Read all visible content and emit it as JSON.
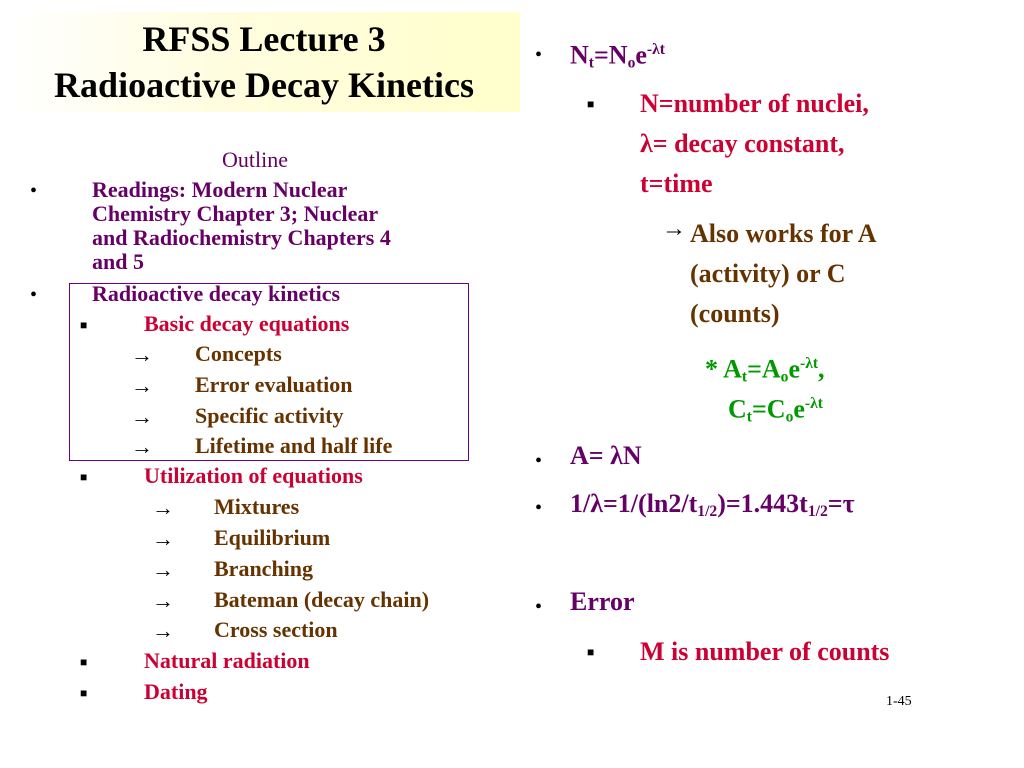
{
  "title": {
    "line1": "RFSS  Lecture 3",
    "line2": "Radioactive Decay Kinetics"
  },
  "outline": {
    "heading": "Outline",
    "items": [
      {
        "bullet": "•",
        "text": "Readings:  Modern Nuclear",
        "cont": [
          "Chemistry Chapter 3; Nuclear",
          "and Radiochemistry  Chapters 4",
          "and 5"
        ]
      },
      {
        "bullet": "•",
        "text": "Radioactive decay kinetics"
      }
    ],
    "basic": "Basic decay equations",
    "basic_sub": [
      "Concepts",
      "Error evaluation",
      "Specific activity",
      "Lifetime and half life"
    ],
    "utilization": "Utilization of equations",
    "util_sub": [
      "Mixtures",
      "Equilibrium",
      "Branching",
      "Bateman (decay chain)",
      "Cross section"
    ],
    "natural": "Natural radiation",
    "dating": "Dating"
  },
  "right": {
    "eq1": {
      "a": "N",
      "b": "t",
      "c": "=N",
      "d": "o",
      "e": "e",
      "f": "-λt"
    },
    "defs": [
      "N=number of nuclei,",
      "λ= decay constant,",
      "t=time"
    ],
    "also": [
      "Also works for A",
      "(activity) or C",
      "(counts)"
    ],
    "star": "*",
    "eqA": {
      "a": "A",
      "b": "t",
      "c": "=A",
      "d": "o",
      "e": "e",
      "f": "-λt",
      "g": ","
    },
    "eqC": {
      "a": "C",
      "b": "t",
      "c": "=C",
      "d": "o",
      "e": "e",
      "f": "-λt"
    },
    "eq2": "A= λN",
    "eq3": {
      "a": "1/λ=1/(ln2/t",
      "b": "1/2",
      "c": ")=1.443t",
      "d": "1/2",
      "e": "=τ"
    },
    "error": "Error",
    "counts": "M is number of counts"
  },
  "page_number": "1-45",
  "colors": {
    "purple": "#660066",
    "red": "#cc0033",
    "brown": "#663300",
    "green": "#009900",
    "title_bg": "#ffffcc"
  }
}
